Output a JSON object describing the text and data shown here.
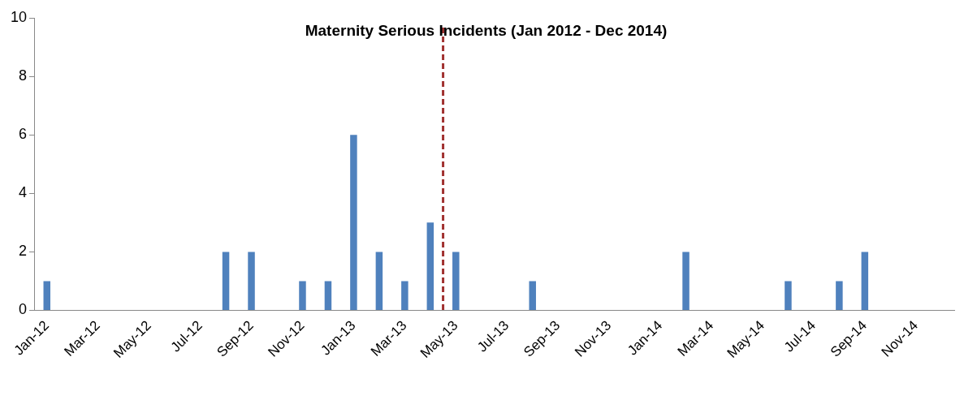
{
  "chart_data": {
    "type": "bar",
    "title": "Maternity Serious Incidents (Jan 2012 - Dec 2014)",
    "categories": [
      "Jan-12",
      null,
      "Mar-12",
      null,
      "May-12",
      null,
      "Jul-12",
      null,
      "Sep-12",
      null,
      "Nov-12",
      null,
      "Jan-13",
      null,
      "Mar-13",
      null,
      "May-13",
      null,
      "Jul-13",
      null,
      "Sep-13",
      null,
      "Nov-13",
      null,
      "Jan-14",
      null,
      "Mar-14",
      null,
      "May-14",
      null,
      "Jul-14",
      null,
      "Sep-14",
      null,
      "Nov-14",
      null
    ],
    "values": [
      1,
      0,
      0,
      0,
      0,
      0,
      0,
      2,
      2,
      0,
      1,
      1,
      6,
      2,
      1,
      3,
      2,
      0,
      0,
      1,
      0,
      0,
      0,
      0,
      0,
      2,
      0,
      0,
      0,
      1,
      0,
      1,
      2,
      0,
      0,
      0
    ],
    "color": "#4f81bd",
    "ylim": [
      0,
      10
    ],
    "yticks": [
      0,
      2,
      4,
      6,
      8,
      10
    ],
    "grid": false,
    "legend": false,
    "ref_lines": [
      {
        "axis": "x",
        "value": "May-13",
        "color": "#a0302f",
        "line_style": "dashed"
      }
    ]
  }
}
